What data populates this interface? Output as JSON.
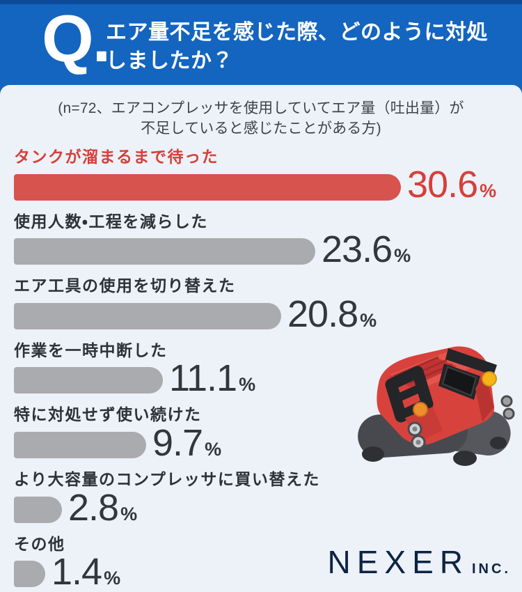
{
  "theme": {
    "header_blue": "#1365bf",
    "header_stripe": "#0c4a99",
    "background": "#edf1f8",
    "bar_red": "#d6534e",
    "text_red": "#d4403a",
    "bar_gray": "#a9abae",
    "text_dark": "#33373d",
    "brand_navy": "#0d2443"
  },
  "header": {
    "q_mark": "Q.",
    "question_line1": "エア量不足を感じた際、どのように対処",
    "question_line2": "しましたか？"
  },
  "subtitle": {
    "line1": "(n=72、エアコンプレッサを使用していてエア量（吐出量）が",
    "line2": "不足していると感じたことがある方)"
  },
  "chart_data": {
    "type": "bar",
    "orientation": "horizontal",
    "title": "エア量不足を感じた際、どのように対処しましたか？",
    "sample_note": "n=72、エアコンプレッサを使用していてエア量（吐出量）が不足していると感じたことがある方",
    "unit": "%",
    "categories": [
      "タンクが溜まるまで待った",
      "使用人数・工程を減らした",
      "エア工具の使用を切り替えた",
      "作業を一時中断した",
      "特に対処せず使い続けた",
      "より大容量のコンプレッサに買い替えた",
      "その他"
    ],
    "values": [
      30.6,
      23.6,
      20.8,
      11.1,
      9.7,
      2.8,
      1.4
    ],
    "rows": [
      {
        "label": "タンクが溜まるまで待った",
        "value": 30.6,
        "value_label": "30.6",
        "highlight": true
      },
      {
        "label": "使用人数・工程を減らした",
        "value": 23.6,
        "value_label": "23.6",
        "highlight": false
      },
      {
        "label": "エア工具の使用を切り替えた",
        "value": 20.8,
        "value_label": "20.8",
        "highlight": false
      },
      {
        "label": "作業を一時中断した",
        "value": 11.1,
        "value_label": "11.1",
        "highlight": false
      },
      {
        "label": "特に対処せず使い続けた",
        "value": 9.7,
        "value_label": "9.7",
        "highlight": false
      },
      {
        "label": "より大容量のコンプレッサに買い替えた",
        "value": 2.8,
        "value_label": "2.8",
        "highlight": false
      },
      {
        "label": "その他",
        "value": 1.4,
        "value_label": "1.4",
        "highlight": false
      }
    ],
    "legend": "none",
    "grid": false
  },
  "footer": {
    "brand": "NEXER",
    "brand_suffix": "INC."
  },
  "illustration": {
    "name": "red-air-compressor"
  }
}
